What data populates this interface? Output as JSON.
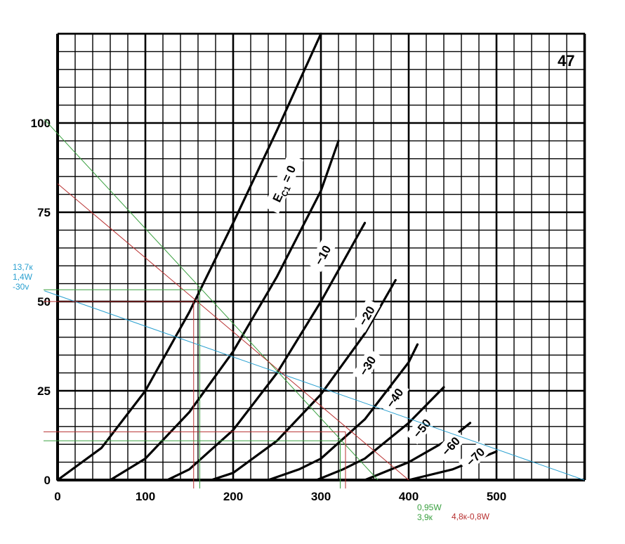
{
  "chart_data": {
    "type": "line",
    "tube_number": "47",
    "xlabel": "",
    "ylabel": "",
    "xlim": [
      0,
      600
    ],
    "ylim": [
      0,
      125
    ],
    "x_ticks": [
      "0",
      "100",
      "200",
      "300",
      "400",
      "500"
    ],
    "x_tick_values": [
      0,
      100,
      200,
      300,
      400,
      500
    ],
    "y_ticks": [
      "0",
      "25",
      "50",
      "75",
      "100"
    ],
    "y_tick_values": [
      0,
      25,
      50,
      75,
      100
    ],
    "grid": true,
    "curve_label_prefix": "E",
    "curve_label_subscript": "C1",
    "curve_label_suffix": " = 0",
    "series": [
      {
        "name": "0",
        "label": "",
        "x": [
          0,
          50,
          100,
          150,
          200,
          250,
          300
        ],
        "y": [
          0,
          9,
          25,
          47,
          72,
          98,
          125
        ]
      },
      {
        "name": "-10",
        "label": "−10",
        "x": [
          60,
          100,
          150,
          200,
          250,
          300,
          320
        ],
        "y": [
          0,
          6,
          19,
          36,
          57,
          81,
          95
        ]
      },
      {
        "name": "-20",
        "label": "−20",
        "x": [
          125,
          150,
          200,
          250,
          300,
          350
        ],
        "y": [
          0,
          3,
          14,
          30,
          50,
          72
        ]
      },
      {
        "name": "-30",
        "label": "−30",
        "x": [
          175,
          200,
          250,
          300,
          350,
          385
        ],
        "y": [
          0,
          2,
          11,
          24,
          41,
          56
        ]
      },
      {
        "name": "-40",
        "label": "−40",
        "x": [
          240,
          275,
          300,
          350,
          400,
          410
        ],
        "y": [
          0,
          3,
          6,
          17,
          33,
          38
        ]
      },
      {
        "name": "-50",
        "label": "−50",
        "x": [
          295,
          325,
          350,
          400,
          440
        ],
        "y": [
          0,
          3,
          6,
          16,
          26
        ]
      },
      {
        "name": "-60",
        "label": "−60",
        "x": [
          350,
          400,
          450,
          470
        ],
        "y": [
          0,
          5,
          12,
          16
        ]
      },
      {
        "name": "-70",
        "label": "−70",
        "x": [
          400,
          450,
          500
        ],
        "y": [
          0,
          3,
          8
        ]
      }
    ],
    "load_lines": [
      {
        "color": "#2aa0d0",
        "x": [
          -15,
          600
        ],
        "y": [
          53,
          0
        ]
      },
      {
        "color": "#3aa040",
        "x": [
          -15,
          365
        ],
        "y": [
          101,
          0
        ]
      },
      {
        "color": "#b83030",
        "x": [
          0,
          400
        ],
        "y": [
          83,
          0
        ]
      }
    ],
    "operating_points": [
      {
        "color": "#b83030",
        "x": 155,
        "y": 50
      },
      {
        "color": "#b83030",
        "x": 328,
        "y": 13.5
      },
      {
        "color": "#3aa040",
        "x": 162,
        "y": 53.3
      },
      {
        "color": "#3aa040",
        "x": 322,
        "y": 11
      }
    ],
    "annotations": [
      {
        "color": "#2aa0d0",
        "lines": [
          "13,7к",
          "1,4W",
          "-30v"
        ]
      },
      {
        "color": "#3aa040",
        "lines": [
          "0,95W",
          "3,9к"
        ]
      },
      {
        "color": "#b83030",
        "lines": [
          "4,8к-0,8W"
        ]
      }
    ]
  }
}
